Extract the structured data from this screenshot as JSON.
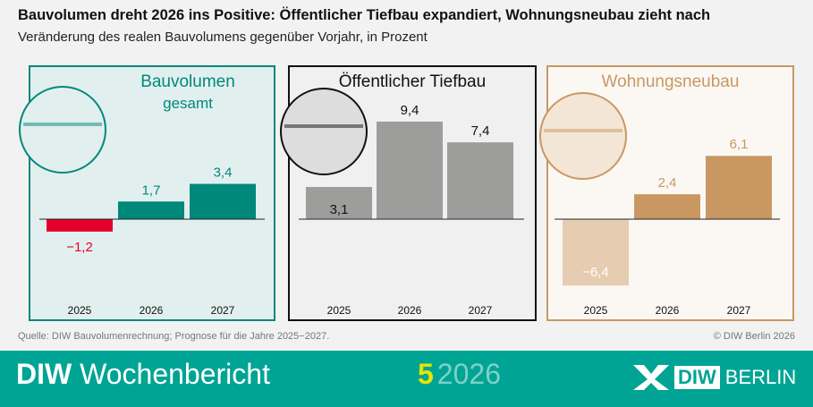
{
  "title": "Bauvolumen dreht 2026 ins Positive: Öffentlicher Tiefbau expandiert, Wohnungsneubau zieht nach",
  "subtitle": "Veränderung des realen Bauvolumens gegenüber Vorjahr, in Prozent",
  "chart_data": [
    {
      "type": "bar",
      "title": "Bauvolumen",
      "subtitle": "gesamt",
      "categories": [
        "2025",
        "2026",
        "2027"
      ],
      "values": [
        -1.2,
        1.7,
        3.4
      ],
      "labels": [
        "−1,2",
        "1,7",
        "3,4"
      ],
      "colors": [
        "#e4002b",
        "#00887a",
        "#00887a"
      ],
      "icon": "city-road-rail-icon"
    },
    {
      "type": "bar",
      "title": "Öffentlicher Tiefbau",
      "categories": [
        "2025",
        "2026",
        "2027"
      ],
      "values": [
        3.1,
        9.4,
        7.4
      ],
      "labels": [
        "3,1",
        "9,4",
        "7,4"
      ],
      "colors": [
        "#9d9d9c",
        "#9d9d9c",
        "#9d9d9c"
      ],
      "icon": "road-rail-icon"
    },
    {
      "type": "bar",
      "title": "Wohnungsneubau",
      "categories": [
        "2025",
        "2026",
        "2027"
      ],
      "values": [
        -6.4,
        2.4,
        6.1
      ],
      "labels": [
        "−6,4",
        "2,4",
        "6,1"
      ],
      "colors": [
        "#e6ccb0",
        "#c99862",
        "#c99862"
      ],
      "icon": "housing-icon"
    }
  ],
  "source": "Quelle: DIW Bauvolumenrechnung; Prognose für die Jahre 2025−2027.",
  "copyright": "© DIW Berlin 2026",
  "footer": {
    "brand_bold": "DIW",
    "brand": "Wochenbericht",
    "issue_number": "5",
    "issue_year": "2026",
    "logo_diw": "DIW",
    "logo_berlin": "BERLIN"
  }
}
